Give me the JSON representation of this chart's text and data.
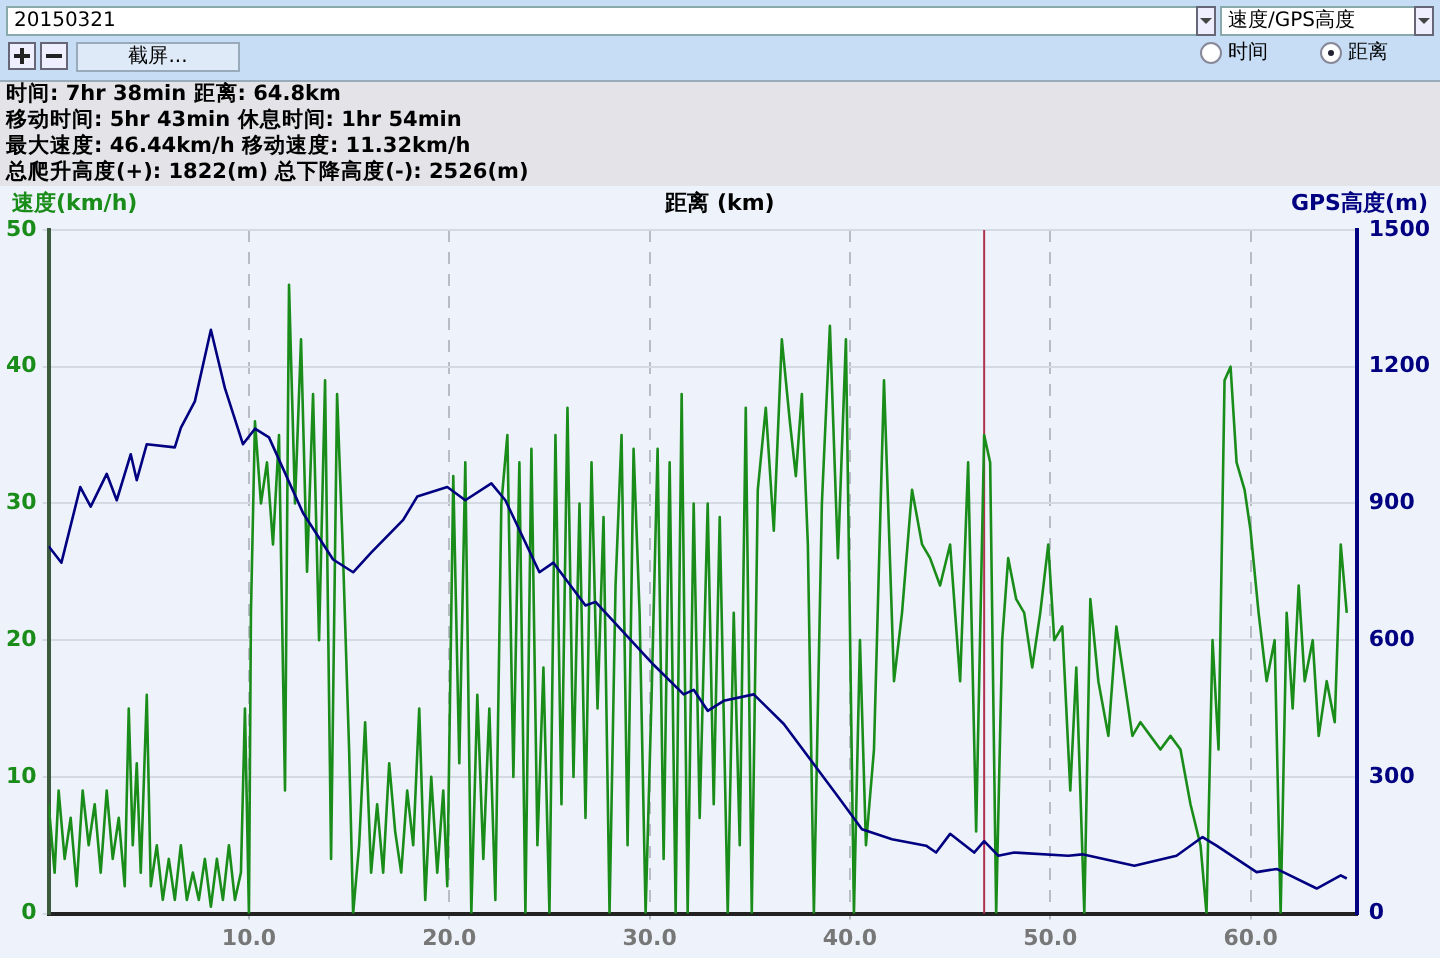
{
  "chart_data": {
    "type": "line",
    "xlabel": "距离 (km)",
    "ylabel": "速度(km/h)",
    "y2label": "GPS高度(m)",
    "annotations": [
      "时间: 7hr 38min  距离: 64.8km",
      "移动时间: 5hr 43min  休息时间: 1hr 54min",
      "最大速度: 46.44km/h  移动速度: 11.32km/h",
      "总爬升高度(+): 1822(m)  总下降高度(-): 2526(m)",
      "20150321",
      "速度/GPS高度",
      "截屏...",
      "时间",
      "距离"
    ],
    "xlim": [
      0,
      65.3
    ],
    "xticks": [
      {
        "value": 10,
        "label": "10.0"
      },
      {
        "value": 20,
        "label": "20.0"
      },
      {
        "value": 30,
        "label": "30.0"
      },
      {
        "value": 40,
        "label": "40.0"
      },
      {
        "value": 50,
        "label": "50.0"
      },
      {
        "value": 60,
        "label": "60.0"
      }
    ],
    "ylim": [
      0,
      50
    ],
    "yticks": [
      0,
      10,
      20,
      30,
      40,
      50
    ],
    "y2lim": [
      0,
      1500
    ],
    "y2ticks": [
      0,
      300,
      600,
      900,
      1200,
      1500
    ],
    "grid": true,
    "legend": false,
    "marker": "none",
    "line_style": "solid",
    "ref_lines": [
      {
        "axis": "x",
        "value": 46.7,
        "color": "#b03050"
      }
    ],
    "series": [
      {
        "color": "#1a8c1a",
        "x": [
          0,
          0.3,
          0.5,
          0.8,
          1.1,
          1.4,
          1.7,
          2.0,
          2.3,
          2.6,
          2.9,
          3.2,
          3.5,
          3.8,
          4.0,
          4.2,
          4.4,
          4.6,
          4.9,
          5.1,
          5.4,
          5.7,
          6.0,
          6.3,
          6.6,
          6.9,
          7.2,
          7.5,
          7.8,
          8.1,
          8.4,
          8.7,
          9.0,
          9.3,
          9.6,
          9.8,
          10.0,
          10.1,
          10.3,
          10.6,
          10.9,
          11.2,
          11.5,
          11.8,
          12.0,
          12.3,
          12.6,
          12.9,
          13.2,
          13.5,
          13.8,
          14.1,
          14.4,
          14.7,
          15.0,
          15.2,
          15.5,
          15.8,
          16.1,
          16.4,
          16.7,
          17.0,
          17.3,
          17.6,
          17.9,
          18.2,
          18.5,
          18.8,
          19.1,
          19.4,
          19.7,
          19.9,
          20.2,
          20.5,
          20.8,
          21.1,
          21.4,
          21.7,
          22.0,
          22.3,
          22.6,
          22.9,
          23.2,
          23.5,
          23.8,
          24.1,
          24.4,
          24.7,
          25.0,
          25.3,
          25.6,
          25.9,
          26.2,
          26.5,
          26.8,
          27.1,
          27.4,
          27.7,
          28.0,
          28.3,
          28.6,
          28.9,
          29.2,
          29.5,
          29.8,
          30.1,
          30.4,
          30.7,
          31.0,
          31.3,
          31.6,
          31.9,
          32.2,
          32.5,
          32.9,
          33.2,
          33.5,
          33.9,
          34.2,
          34.5,
          34.8,
          35.1,
          35.4,
          35.8,
          36.2,
          36.6,
          37.0,
          37.3,
          37.6,
          37.9,
          38.2,
          38.6,
          39.0,
          39.4,
          39.8,
          40.2,
          40.5,
          40.8,
          41.2,
          41.7,
          42.2,
          42.6,
          43.1,
          43.6,
          44.0,
          44.5,
          45.0,
          45.5,
          45.9,
          46.3,
          46.7,
          47.0,
          47.3,
          47.6,
          47.9,
          48.3,
          48.7,
          49.1,
          49.5,
          49.9,
          50.2,
          50.6,
          51.0,
          51.3,
          51.7,
          52.0,
          52.4,
          52.9,
          53.3,
          53.7,
          54.1,
          54.5,
          55.0,
          55.5,
          56.0,
          56.5,
          57.0,
          57.5,
          57.8,
          58.1,
          58.4,
          58.7,
          59.0,
          59.3,
          59.7,
          60.0,
          60.4,
          60.8,
          61.2,
          61.5,
          61.8,
          62.1,
          62.4,
          62.7,
          63.1,
          63.4,
          63.8,
          64.2,
          64.5,
          64.8
        ],
        "values": [
          8,
          3,
          9,
          4,
          7,
          2,
          9,
          5,
          8,
          3,
          9,
          4,
          7,
          2,
          15,
          5,
          11,
          3,
          16,
          2,
          5,
          1,
          4,
          1,
          5,
          1,
          3,
          1,
          4,
          0.5,
          4,
          1,
          5,
          1,
          3,
          15,
          0,
          22,
          36,
          30,
          33,
          27,
          35,
          9,
          46,
          30,
          42,
          25,
          38,
          20,
          39,
          4,
          38,
          26,
          12,
          0,
          5,
          14,
          3,
          8,
          3,
          11,
          6,
          3,
          9,
          5,
          15,
          1,
          10,
          3,
          9,
          2,
          32,
          11,
          33,
          0,
          16,
          4,
          15,
          1,
          30,
          35,
          10,
          33,
          0,
          34,
          5,
          18,
          0,
          35,
          8,
          37,
          10,
          30,
          7,
          33,
          15,
          29,
          0,
          24,
          35,
          5,
          34,
          22,
          0,
          16,
          34,
          4,
          33,
          0,
          38,
          0,
          30,
          7,
          30,
          8,
          29,
          0,
          22,
          5,
          37,
          0,
          31,
          37,
          28,
          42,
          36,
          32,
          38,
          27,
          0,
          30,
          43,
          26,
          42,
          0,
          20,
          5,
          12,
          39,
          17,
          22,
          31,
          27,
          26,
          24,
          27,
          17,
          33,
          6,
          35,
          33,
          0,
          20,
          26,
          23,
          22,
          18,
          22,
          27,
          20,
          21,
          9,
          18,
          0,
          23,
          17,
          13,
          21,
          17,
          13,
          14,
          13,
          12,
          13,
          12,
          8,
          5,
          0,
          20,
          12,
          39,
          40,
          33,
          31,
          28,
          22,
          17,
          20,
          0,
          22,
          15,
          24,
          17,
          20,
          13,
          17,
          14,
          27,
          22
        ]
      },
      {
        "color": "#000080",
        "axis": "y2",
        "x": [
          0,
          0.64,
          1.58,
          2.1,
          2.9,
          3.4,
          4.1,
          4.4,
          4.9,
          6.3,
          6.6,
          7.3,
          8.1,
          8.8,
          9.7,
          10.3,
          11.0,
          12.7,
          14.2,
          15.2,
          16.1,
          17.7,
          18.4,
          19.9,
          20.8,
          22.1,
          22.8,
          24.5,
          25.2,
          26.8,
          27.3,
          30.2,
          31.7,
          32.2,
          32.9,
          33.7,
          35.2,
          36.7,
          39.4,
          40.6,
          42.1,
          43.8,
          44.3,
          45.0,
          46.2,
          46.7,
          47.4,
          48.2,
          50.9,
          51.6,
          54.2,
          56.3,
          57.6,
          58.3,
          60.3,
          61.3,
          63.3,
          64.5,
          64.8
        ],
        "values": [
          806,
          770,
          936,
          893,
          965,
          907,
          1008,
          951,
          1030,
          1023,
          1066,
          1124,
          1281,
          1153,
          1030,
          1064,
          1045,
          879,
          777,
          749,
          792,
          864,
          915,
          936,
          907,
          944,
          907,
          749,
          770,
          676,
          684,
          546,
          481,
          491,
          445,
          467,
          481,
          416,
          257,
          185,
          163,
          149,
          134,
          175,
          134,
          159,
          127,
          134,
          127,
          130,
          105,
          127,
          168,
          149,
          91,
          98,
          55,
          84,
          77
        ]
      }
    ]
  }
}
